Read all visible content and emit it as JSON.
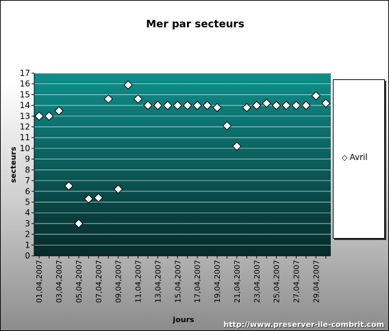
{
  "chart_data": {
    "type": "scatter",
    "title": "Mer par secteurs",
    "xlabel": "jours",
    "ylabel": "secteurs",
    "ylim": [
      0,
      17
    ],
    "y_ticks": [
      "0",
      "1",
      "2",
      "3",
      "4",
      "5",
      "6",
      "7",
      "8",
      "9",
      "10",
      "11",
      "12",
      "13",
      "14",
      "15",
      "16",
      "17"
    ],
    "x_tick_labels": [
      "01,04,2007",
      "03,04,2007",
      "05,04,2007",
      "07,04,2007",
      "09,04,2007",
      "11,04,2007",
      "13,04,2007",
      "15,04,2007",
      "17,04,2007",
      "19,04,2007",
      "21,04,2007",
      "23,04,2007",
      "25,04,2007",
      "27,04,2007",
      "29,04,2007"
    ],
    "grid": true,
    "legend_position": "right",
    "series": [
      {
        "name": "Avril",
        "marker": "diamond",
        "color": "#ffffff",
        "x": [
          "01,04,2007",
          "02,04,2007",
          "03,04,2007",
          "04,04,2007",
          "05,04,2007",
          "06,04,2007",
          "07,04,2007",
          "08,04,2007",
          "09,04,2007",
          "10,04,2007",
          "11,04,2007",
          "12,04,2007",
          "13,04,2007",
          "14,04,2007",
          "15,04,2007",
          "16,04,2007",
          "17,04,2007",
          "18,04,2007",
          "19,04,2007",
          "20,04,2007",
          "21,04,2007",
          "22,04,2007",
          "23,04,2007",
          "24,04,2007",
          "25,04,2007",
          "26,04,2007",
          "27,04,2007",
          "28,04,2007",
          "29,04,2007",
          "30,04,2007"
        ],
        "values": [
          13,
          13,
          13.5,
          6.5,
          3,
          5.3,
          5.4,
          14.6,
          6.2,
          15.9,
          14.6,
          14,
          14,
          14,
          14,
          14,
          14,
          14,
          13.8,
          12.1,
          10.2,
          13.8,
          14,
          14.2,
          14,
          14,
          14,
          14,
          14.9,
          14.2
        ]
      }
    ]
  },
  "footer": {
    "source_url": "http://www.preserver-ile-combrit.com"
  },
  "colors": {
    "plot_top": "#0e8a87",
    "plot_bottom": "#062d2c",
    "grid": "#ffffff",
    "marker_fill": "#ffffff",
    "marker_stroke": "#000000"
  }
}
